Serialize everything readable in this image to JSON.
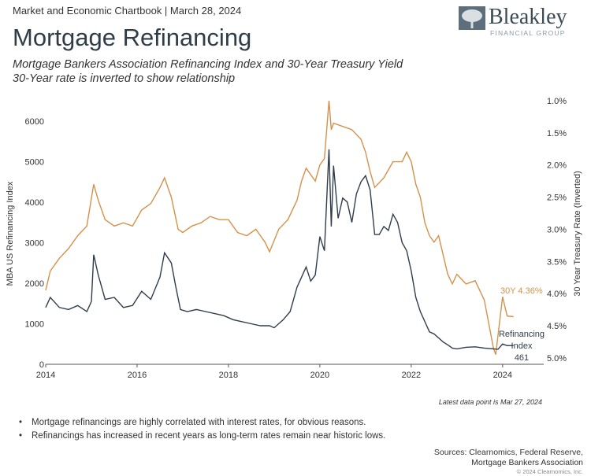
{
  "header": {
    "chartbook_line": "Market and Economic Chartbook | March 28, 2024",
    "logo_name": "Bleakley",
    "logo_sub": "FINANCIAL GROUP"
  },
  "title": "Mortgage Refinancing",
  "subtitle_1": "Mortgage Bankers Association Refinancing Index and 30-Year Treasury Yield",
  "subtitle_2": "30-Year rate is inverted to show relationship",
  "colors": {
    "refi": "#2f3d4c",
    "yield": "#d4914a"
  },
  "chart_data": {
    "type": "line",
    "x_ticks": [
      "2014",
      "2016",
      "2018",
      "2020",
      "2022",
      "2024"
    ],
    "x_range": [
      2014,
      2024.9
    ],
    "left_axis": {
      "label": "MBA US Refinancing Index",
      "range": [
        0,
        6500
      ],
      "ticks": [
        "0",
        "1000",
        "2000",
        "3000",
        "4000",
        "5000",
        "6000"
      ]
    },
    "right_axis": {
      "label": "30 Year Treasury Rate (Inverted)",
      "inverted": true,
      "range": [
        1.0,
        5.1
      ],
      "ticks": [
        "1.0%",
        "1.5%",
        "2.0%",
        "2.5%",
        "3.0%",
        "3.5%",
        "4.0%",
        "4.5%",
        "5.0%"
      ]
    },
    "series": [
      {
        "name": "Refinancing Index",
        "axis": "left",
        "x": [
          2014.0,
          2014.1,
          2014.3,
          2014.5,
          2014.7,
          2014.9,
          2015.0,
          2015.05,
          2015.15,
          2015.3,
          2015.5,
          2015.7,
          2015.9,
          2016.1,
          2016.3,
          2016.5,
          2016.6,
          2016.75,
          2016.85,
          2016.95,
          2017.1,
          2017.3,
          2017.5,
          2017.7,
          2017.9,
          2018.1,
          2018.3,
          2018.5,
          2018.7,
          2018.9,
          2019.0,
          2019.2,
          2019.35,
          2019.5,
          2019.6,
          2019.7,
          2019.8,
          2019.9,
          2020.0,
          2020.1,
          2020.2,
          2020.25,
          2020.3,
          2020.4,
          2020.5,
          2020.6,
          2020.7,
          2020.8,
          2020.9,
          2021.0,
          2021.1,
          2021.2,
          2021.3,
          2021.4,
          2021.5,
          2021.6,
          2021.7,
          2021.8,
          2021.9,
          2022.0,
          2022.1,
          2022.2,
          2022.3,
          2022.4,
          2022.5,
          2022.6,
          2022.7,
          2022.8,
          2022.9,
          2023.0,
          2023.2,
          2023.4,
          2023.6,
          2023.8,
          2023.9,
          2024.0,
          2024.1,
          2024.24
        ],
        "values": [
          1400,
          1650,
          1400,
          1350,
          1450,
          1300,
          1550,
          2700,
          2200,
          1600,
          1650,
          1400,
          1450,
          1800,
          1600,
          2150,
          2750,
          2500,
          1900,
          1350,
          1300,
          1350,
          1300,
          1250,
          1200,
          1100,
          1050,
          1000,
          950,
          950,
          900,
          1100,
          1300,
          1900,
          2150,
          2400,
          2050,
          2200,
          3150,
          2800,
          5300,
          3400,
          4900,
          3600,
          4100,
          4000,
          3500,
          4200,
          4500,
          4650,
          4300,
          3200,
          3200,
          3400,
          3300,
          3700,
          3500,
          3000,
          2800,
          2300,
          1650,
          1300,
          1050,
          800,
          750,
          650,
          550,
          480,
          400,
          380,
          420,
          430,
          400,
          380,
          370,
          500,
          460,
          461
        ]
      },
      {
        "name": "30Y",
        "axis": "right",
        "x": [
          2014.0,
          2014.1,
          2014.3,
          2014.5,
          2014.7,
          2014.9,
          2015.05,
          2015.15,
          2015.3,
          2015.5,
          2015.7,
          2015.9,
          2016.1,
          2016.3,
          2016.5,
          2016.6,
          2016.75,
          2016.9,
          2017.0,
          2017.2,
          2017.4,
          2017.6,
          2017.8,
          2018.0,
          2018.2,
          2018.4,
          2018.6,
          2018.8,
          2018.9,
          2019.1,
          2019.3,
          2019.5,
          2019.6,
          2019.7,
          2019.9,
          2020.0,
          2020.1,
          2020.2,
          2020.25,
          2020.3,
          2020.5,
          2020.7,
          2020.9,
          2021.0,
          2021.1,
          2021.2,
          2021.4,
          2021.6,
          2021.8,
          2021.9,
          2022.0,
          2022.1,
          2022.2,
          2022.3,
          2022.4,
          2022.5,
          2022.6,
          2022.8,
          2022.9,
          2023.0,
          2023.2,
          2023.4,
          2023.6,
          2023.8,
          2023.85,
          2024.0,
          2024.1,
          2024.24
        ],
        "values": [
          3.95,
          3.65,
          3.45,
          3.3,
          3.1,
          2.95,
          2.3,
          2.55,
          2.85,
          2.95,
          2.9,
          2.95,
          2.7,
          2.6,
          2.35,
          2.2,
          2.5,
          3.0,
          3.05,
          2.95,
          2.9,
          2.8,
          2.85,
          2.85,
          3.05,
          3.1,
          3.0,
          3.2,
          3.35,
          3.0,
          2.85,
          2.55,
          2.25,
          2.05,
          2.25,
          2.0,
          1.9,
          1.0,
          1.45,
          1.35,
          1.4,
          1.45,
          1.6,
          1.8,
          2.1,
          2.35,
          2.2,
          1.95,
          1.95,
          1.8,
          1.95,
          2.3,
          2.5,
          2.9,
          3.1,
          3.2,
          3.1,
          3.7,
          3.85,
          3.7,
          3.85,
          3.8,
          4.1,
          4.85,
          4.95,
          4.05,
          4.35,
          4.36
        ]
      }
    ],
    "annotations": {
      "yield_label": "30Y 4.36%",
      "refi_label_1": "Refinancing",
      "refi_label_2": "Index",
      "refi_label_3": "461"
    }
  },
  "note": "Latest data point is Mar 27, 2024",
  "bullets": [
    "Mortgage refinancings are highly correlated with interest rates, for obvious reasons.",
    "Refinancings has increased in recent years as long-term rates remain near historic lows."
  ],
  "sources_1": "Sources: Clearnomics, Federal Reserve,",
  "sources_2": "Mortgage Bankers Association",
  "copyright": "© 2024 Clearnomics, Inc."
}
